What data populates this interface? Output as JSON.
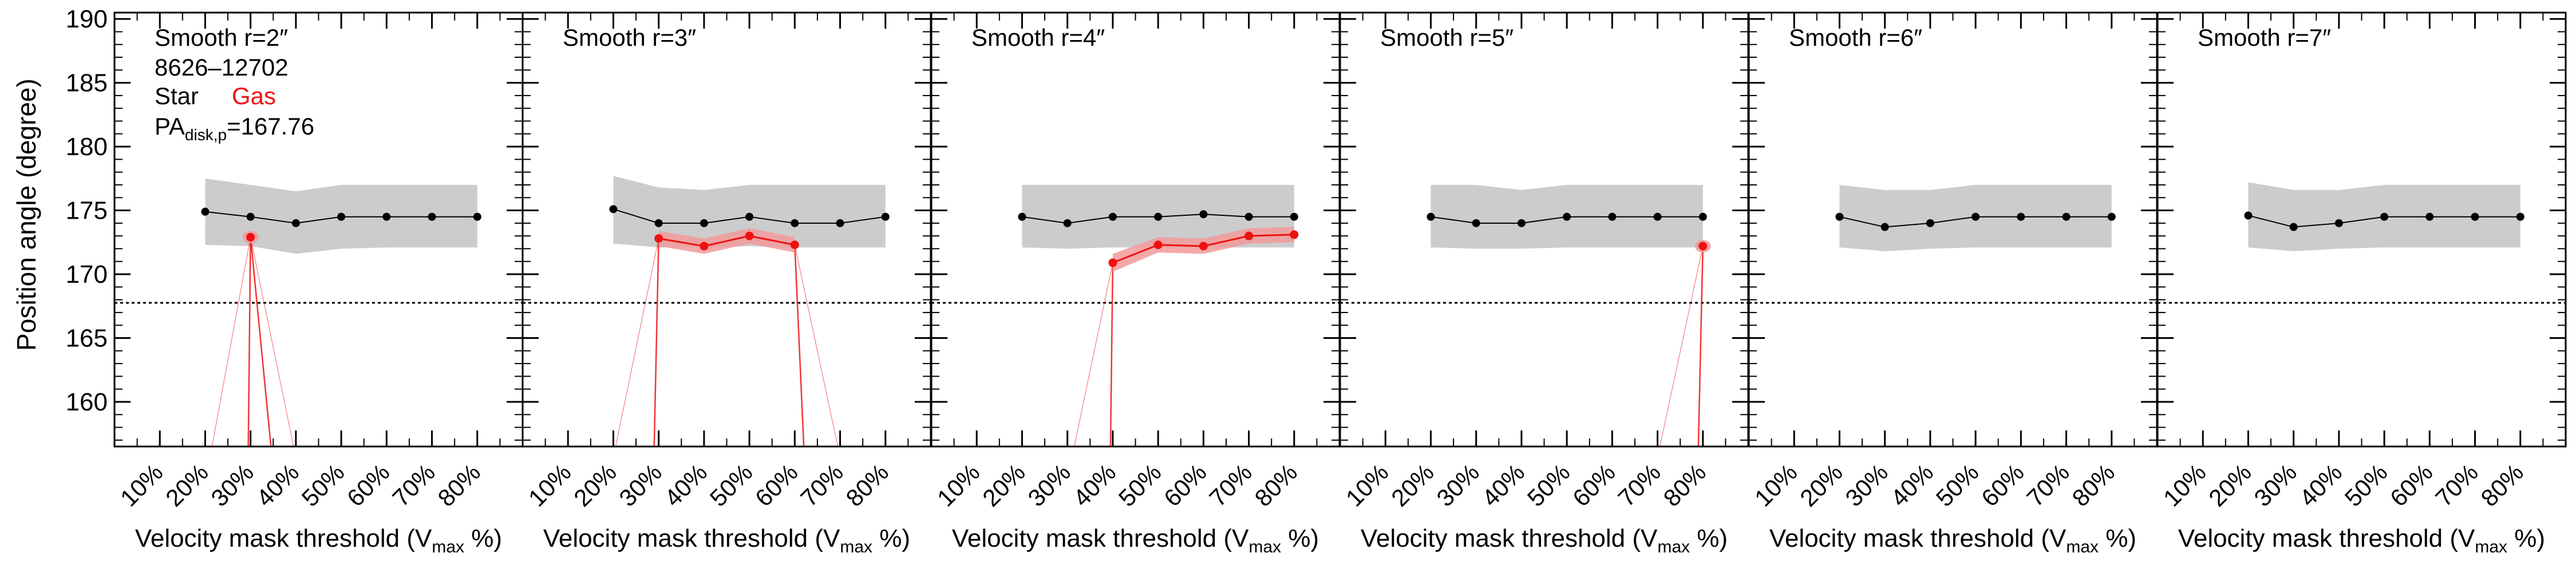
{
  "figure": {
    "ylabel": "Position angle (degree)",
    "ylabel_unit": "",
    "xlabel_parts": {
      "pre": "Velocity mask threshold (V",
      "sub": "max",
      "post": " %)"
    }
  },
  "legend": {
    "galaxy_id": "8626–12702",
    "star_label": "Star",
    "gas_label": "Gas",
    "pa_prefix": "PA",
    "pa_sub": "disk,p",
    "pa_value": "=167.76"
  },
  "colors": {
    "star": "#000000",
    "gas": "#ee1111",
    "gas_band": "#f19a9a",
    "star_band": "#cccccc",
    "reference_line": "#000000"
  },
  "chart_data": {
    "type": "line",
    "ylim": [
      156.5,
      190.5
    ],
    "yticks": [
      160,
      165,
      170,
      175,
      180,
      185,
      190
    ],
    "xlim": [
      0,
      90
    ],
    "xticks": [
      10,
      20,
      30,
      40,
      50,
      60,
      70,
      80
    ],
    "xtick_labels": [
      "10%",
      "20%",
      "30%",
      "40%",
      "50%",
      "60%",
      "70%",
      "80%"
    ],
    "reference_pa": 167.76,
    "panels": [
      {
        "title": "Smooth r=2″",
        "star": {
          "x": [
            20,
            30,
            40,
            50,
            60,
            70,
            80
          ],
          "y": [
            174.9,
            174.5,
            174.0,
            174.5,
            174.5,
            174.5,
            174.5
          ],
          "lower": [
            172.3,
            172.2,
            171.6,
            172.0,
            172.1,
            172.1,
            172.1
          ],
          "upper": [
            177.5,
            177.0,
            176.5,
            177.0,
            177.0,
            177.0,
            177.0
          ]
        },
        "gas": {
          "x": [
            30
          ],
          "y": [
            172.9
          ],
          "lower": [
            172.4
          ],
          "upper": [
            173.4
          ],
          "drop_lines": [
            {
              "x_top": 30,
              "x_bottom": 29.5
            },
            {
              "x_top": 30,
              "x_bottom": 34.5
            }
          ],
          "faint_lines": [
            {
              "x_top": 30,
              "x_bottom": 21.5
            },
            {
              "x_top": 30,
              "x_bottom": 39.5
            }
          ]
        }
      },
      {
        "title": "Smooth r=3″",
        "star": {
          "x": [
            20,
            30,
            40,
            50,
            60,
            70,
            80
          ],
          "y": [
            175.1,
            174.0,
            174.0,
            174.5,
            174.0,
            174.0,
            174.5
          ],
          "lower": [
            172.4,
            172.1,
            172.1,
            172.2,
            172.1,
            172.1,
            172.1
          ],
          "upper": [
            177.7,
            176.8,
            176.6,
            177.0,
            177.0,
            177.0,
            177.0
          ]
        },
        "gas": {
          "x": [
            30,
            40,
            50,
            60
          ],
          "y": [
            172.8,
            172.2,
            173.0,
            172.3
          ],
          "lower": [
            172.2,
            171.6,
            172.4,
            171.7
          ],
          "upper": [
            173.4,
            172.8,
            173.6,
            172.9
          ],
          "drop_lines": [
            {
              "x_top": 30,
              "x_bottom": 29.0
            },
            {
              "x_top": 60,
              "x_bottom": 62.0
            }
          ],
          "faint_lines": [
            {
              "x_top": 30,
              "x_bottom": 20.5
            },
            {
              "x_top": 60,
              "x_bottom": 69.5
            }
          ]
        }
      },
      {
        "title": "Smooth r=4″",
        "star": {
          "x": [
            20,
            30,
            40,
            50,
            60,
            70,
            80
          ],
          "y": [
            174.5,
            174.0,
            174.5,
            174.5,
            174.7,
            174.5,
            174.5
          ],
          "lower": [
            172.1,
            172.0,
            172.1,
            172.1,
            172.1,
            172.1,
            172.1
          ],
          "upper": [
            177.0,
            177.0,
            177.0,
            177.0,
            177.0,
            177.0,
            177.0
          ]
        },
        "gas": {
          "x": [
            40,
            50,
            60,
            70,
            80
          ],
          "y": [
            170.9,
            172.3,
            172.2,
            173.0,
            173.1
          ],
          "lower": [
            170.2,
            171.7,
            171.6,
            172.4,
            172.5
          ],
          "upper": [
            171.6,
            172.9,
            172.8,
            173.6,
            173.7
          ],
          "drop_lines": [
            {
              "x_top": 40,
              "x_bottom": 39.5
            }
          ],
          "faint_lines": [
            {
              "x_top": 40,
              "x_bottom": 31.5
            }
          ]
        }
      },
      {
        "title": "Smooth r=5″",
        "star": {
          "x": [
            20,
            30,
            40,
            50,
            60,
            70,
            80
          ],
          "y": [
            174.5,
            174.0,
            174.0,
            174.5,
            174.5,
            174.5,
            174.5
          ],
          "lower": [
            172.1,
            172.0,
            172.0,
            172.1,
            172.1,
            172.1,
            172.1
          ],
          "upper": [
            177.0,
            177.0,
            176.6,
            177.0,
            177.0,
            177.0,
            177.0
          ]
        },
        "gas": {
          "x": [
            80
          ],
          "y": [
            172.2
          ],
          "lower": [
            171.8
          ],
          "upper": [
            172.6
          ],
          "drop_lines": [
            {
              "x_top": 80,
              "x_bottom": 79.0
            }
          ],
          "faint_lines": [
            {
              "x_top": 80,
              "x_bottom": 70.5
            }
          ]
        }
      },
      {
        "title": "Smooth r=6″",
        "star": {
          "x": [
            20,
            30,
            40,
            50,
            60,
            70,
            80
          ],
          "y": [
            174.5,
            173.7,
            174.0,
            174.5,
            174.5,
            174.5,
            174.5
          ],
          "lower": [
            172.1,
            171.8,
            172.0,
            172.1,
            172.1,
            172.1,
            172.1
          ],
          "upper": [
            177.0,
            176.6,
            176.6,
            177.0,
            177.0,
            177.0,
            177.0
          ]
        },
        "gas": null
      },
      {
        "title": "Smooth r=7″",
        "star": {
          "x": [
            20,
            30,
            40,
            50,
            60,
            70,
            80
          ],
          "y": [
            174.6,
            173.7,
            174.0,
            174.5,
            174.5,
            174.5,
            174.5
          ],
          "lower": [
            172.1,
            171.8,
            172.0,
            172.1,
            172.1,
            172.1,
            172.1
          ],
          "upper": [
            177.2,
            176.6,
            176.6,
            177.0,
            177.0,
            177.0,
            177.0
          ]
        },
        "gas": null
      }
    ]
  }
}
